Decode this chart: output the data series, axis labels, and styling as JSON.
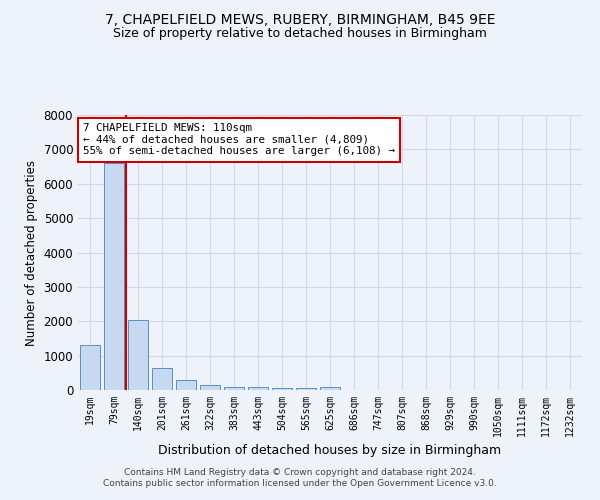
{
  "title": "7, CHAPELFIELD MEWS, RUBERY, BIRMINGHAM, B45 9EE",
  "subtitle": "Size of property relative to detached houses in Birmingham",
  "xlabel": "Distribution of detached houses by size in Birmingham",
  "ylabel": "Number of detached properties",
  "categories": [
    "19sqm",
    "79sqm",
    "140sqm",
    "201sqm",
    "261sqm",
    "322sqm",
    "383sqm",
    "443sqm",
    "504sqm",
    "565sqm",
    "625sqm",
    "686sqm",
    "747sqm",
    "807sqm",
    "868sqm",
    "929sqm",
    "990sqm",
    "1050sqm",
    "1111sqm",
    "1172sqm",
    "1232sqm"
  ],
  "values": [
    1300,
    6600,
    2050,
    650,
    280,
    150,
    100,
    75,
    50,
    50,
    100,
    0,
    0,
    0,
    0,
    0,
    0,
    0,
    0,
    0,
    0
  ],
  "bar_color": "#c7d9f0",
  "bar_edge_color": "#5a8fc2",
  "highlight_line_color": "#cc0000",
  "annotation_text": "7 CHAPELFIELD MEWS: 110sqm\n← 44% of detached houses are smaller (4,809)\n55% of semi-detached houses are larger (6,108) →",
  "annotation_box_color": "#ffffff",
  "annotation_box_edge_color": "#cc0000",
  "ylim": [
    0,
    8000
  ],
  "yticks": [
    0,
    1000,
    2000,
    3000,
    4000,
    5000,
    6000,
    7000,
    8000
  ],
  "grid_color": "#d0d8e8",
  "background_color": "#eef2fa",
  "footer_line1": "Contains HM Land Registry data © Crown copyright and database right 2024.",
  "footer_line2": "Contains public sector information licensed under the Open Government Licence v3.0."
}
